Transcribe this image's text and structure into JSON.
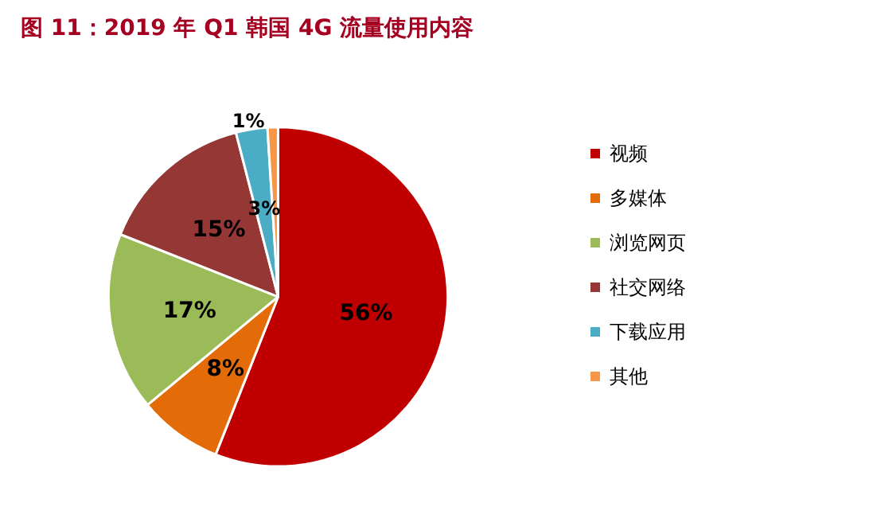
{
  "chart_data": {
    "type": "pie",
    "title": "图 11：2019 年 Q1 韩国 4G 流量使用内容",
    "categories": [
      "视频",
      "多媒体",
      "浏览网页",
      "社交网络",
      "下载应用",
      "其他"
    ],
    "values": [
      56,
      8,
      17,
      15,
      3,
      1
    ],
    "colors": [
      "#c00000",
      "#e36c09",
      "#9bbb59",
      "#953735",
      "#4bacc6",
      "#f79646"
    ],
    "value_labels": [
      "56%",
      "8%",
      "17%",
      "15%",
      "3%",
      "1%"
    ],
    "legend": "right"
  }
}
